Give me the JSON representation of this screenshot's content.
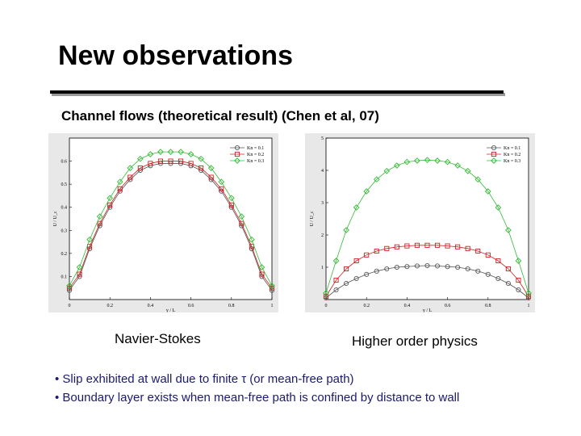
{
  "slide": {
    "title": "New observations",
    "subtitle": "Channel flows (theoretical result) (Chen et al, 07)",
    "caption_left": "Navier-Stokes",
    "caption_right": "Higher order physics",
    "bullets": [
      "• Slip exhibited at wall due to finite τ (or mean-free path)",
      "• Boundary layer exists when mean-free path is confined by distance to wall"
    ]
  },
  "colors": {
    "kn01": "#555555",
    "kn02": "#cc2222",
    "kn03": "#33bb33"
  },
  "chart_data": [
    {
      "type": "line",
      "xlabel": "y / L",
      "ylabel": "U / U_c",
      "xlim": [
        0,
        1
      ],
      "ylim": [
        0,
        0.7
      ],
      "xticks": [
        "0",
        "0.2",
        "0.4",
        "0.6",
        "0.8",
        "1"
      ],
      "yticks": [
        "0.1",
        "0.2",
        "0.3",
        "0.4",
        "0.5",
        "0.6"
      ],
      "legend_position": "top-right",
      "x": [
        0,
        0.05,
        0.1,
        0.15,
        0.2,
        0.25,
        0.3,
        0.35,
        0.4,
        0.45,
        0.5,
        0.55,
        0.6,
        0.65,
        0.7,
        0.75,
        0.8,
        0.85,
        0.9,
        0.95,
        1.0
      ],
      "series": [
        {
          "name": "Kn = 0.1",
          "color": "#555555",
          "marker": "circle",
          "values": [
            0.04,
            0.1,
            0.22,
            0.32,
            0.4,
            0.47,
            0.52,
            0.56,
            0.58,
            0.59,
            0.59,
            0.59,
            0.58,
            0.56,
            0.52,
            0.47,
            0.4,
            0.32,
            0.22,
            0.1,
            0.04
          ]
        },
        {
          "name": "Kn = 0.2",
          "color": "#cc2222",
          "marker": "square",
          "values": [
            0.05,
            0.11,
            0.23,
            0.33,
            0.41,
            0.48,
            0.53,
            0.57,
            0.59,
            0.6,
            0.6,
            0.6,
            0.59,
            0.57,
            0.53,
            0.48,
            0.41,
            0.33,
            0.23,
            0.11,
            0.05
          ]
        },
        {
          "name": "Kn = 0.3",
          "color": "#33bb33",
          "marker": "diamond",
          "values": [
            0.06,
            0.14,
            0.26,
            0.36,
            0.44,
            0.51,
            0.57,
            0.61,
            0.63,
            0.64,
            0.64,
            0.64,
            0.63,
            0.61,
            0.57,
            0.51,
            0.44,
            0.36,
            0.26,
            0.14,
            0.06
          ]
        }
      ]
    },
    {
      "type": "line",
      "xlabel": "y / L",
      "ylabel": "U / U_c",
      "xlim": [
        0,
        1
      ],
      "ylim": [
        0,
        5
      ],
      "xticks": [
        "0",
        "0.2",
        "0.4",
        "0.6",
        "0.8",
        "1"
      ],
      "yticks": [
        "1",
        "2",
        "3",
        "4",
        "5"
      ],
      "legend_position": "top-right",
      "x": [
        0,
        0.05,
        0.1,
        0.15,
        0.2,
        0.25,
        0.3,
        0.35,
        0.4,
        0.45,
        0.5,
        0.55,
        0.6,
        0.65,
        0.7,
        0.75,
        0.8,
        0.85,
        0.9,
        0.95,
        1.0
      ],
      "series": [
        {
          "name": "Kn = 0.1",
          "color": "#555555",
          "marker": "circle",
          "values": [
            0.05,
            0.3,
            0.5,
            0.65,
            0.78,
            0.88,
            0.95,
            1.0,
            1.02,
            1.04,
            1.05,
            1.04,
            1.02,
            1.0,
            0.95,
            0.88,
            0.78,
            0.65,
            0.5,
            0.3,
            0.05
          ]
        },
        {
          "name": "Kn = 0.2",
          "color": "#cc2222",
          "marker": "square",
          "values": [
            0.1,
            0.6,
            0.95,
            1.2,
            1.38,
            1.5,
            1.58,
            1.63,
            1.66,
            1.68,
            1.68,
            1.68,
            1.66,
            1.63,
            1.58,
            1.5,
            1.38,
            1.2,
            0.95,
            0.6,
            0.1
          ]
        },
        {
          "name": "Kn = 0.3",
          "color": "#33bb33",
          "marker": "diamond",
          "values": [
            0.2,
            1.2,
            2.15,
            2.85,
            3.35,
            3.72,
            3.98,
            4.15,
            4.26,
            4.3,
            4.32,
            4.3,
            4.26,
            4.15,
            3.98,
            3.72,
            3.35,
            2.85,
            2.15,
            1.2,
            0.2
          ]
        }
      ]
    }
  ]
}
